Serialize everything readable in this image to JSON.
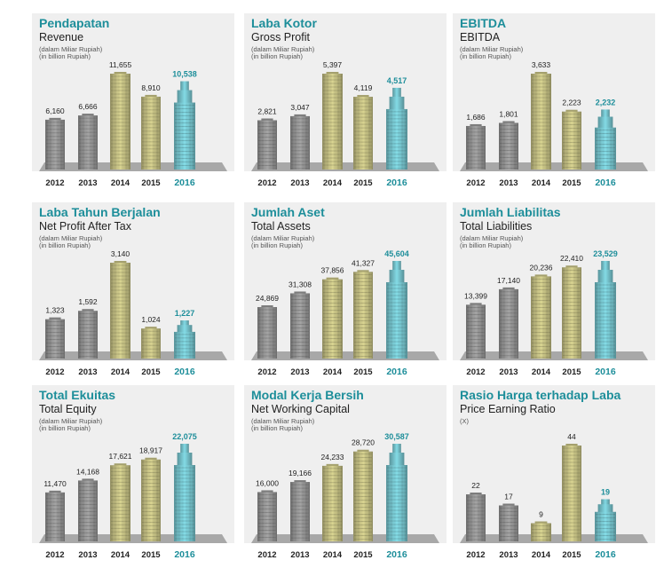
{
  "colors": {
    "accent": "#1d8e9a",
    "panel_bg": "#efefef",
    "floor": "#a8a8a8",
    "gray_building": "#8a8a8a",
    "olive_building": "#b6b27a",
    "teal_building": "#6fb9c2"
  },
  "chart_data": [
    {
      "type": "bar",
      "title": "Pendapatan",
      "subtitle": "Revenue",
      "unit_id": "(dalam Miliar Rupiah)",
      "unit_en": "(in billion Rupiah)",
      "categories": [
        "2012",
        "2013",
        "2014",
        "2015",
        "2016"
      ],
      "values": [
        6160,
        6666,
        11655,
        8910,
        10538
      ],
      "labels": [
        "6,160",
        "6,666",
        "11,655",
        "8,910",
        "10,538"
      ],
      "highlight": "2016"
    },
    {
      "type": "bar",
      "title": "Laba Kotor",
      "subtitle": "Gross Profit",
      "unit_id": "(dalam Miliar Rupiah)",
      "unit_en": "(in billion Rupiah)",
      "categories": [
        "2012",
        "2013",
        "2014",
        "2015",
        "2016"
      ],
      "values": [
        2821,
        3047,
        5397,
        4119,
        4517
      ],
      "labels": [
        "2,821",
        "3,047",
        "5,397",
        "4,119",
        "4,517"
      ],
      "highlight": "2016"
    },
    {
      "type": "bar",
      "title": "EBITDA",
      "subtitle": "EBITDA",
      "unit_id": "(dalam Miliar Rupiah)",
      "unit_en": "(in billion Rupiah)",
      "categories": [
        "2012",
        "2013",
        "2014",
        "2015",
        "2016"
      ],
      "values": [
        1686,
        1801,
        3633,
        2223,
        2232
      ],
      "labels": [
        "1,686",
        "1,801",
        "3,633",
        "2,223",
        "2,232"
      ],
      "highlight": "2016"
    },
    {
      "type": "bar",
      "title": "Laba Tahun Berjalan",
      "subtitle": "Net Profit After Tax",
      "unit_id": "(dalam Miliar Rupiah)",
      "unit_en": "(in billion Rupiah)",
      "categories": [
        "2012",
        "2013",
        "2014",
        "2015",
        "2016"
      ],
      "values": [
        1323,
        1592,
        3140,
        1024,
        1227
      ],
      "labels": [
        "1,323",
        "1,592",
        "3,140",
        "1,024",
        "1,227"
      ],
      "highlight": "2016"
    },
    {
      "type": "bar",
      "title": "Jumlah Aset",
      "subtitle": "Total Assets",
      "unit_id": "(dalam Miliar Rupiah)",
      "unit_en": "(in billion Rupiah)",
      "categories": [
        "2012",
        "2013",
        "2014",
        "2015",
        "2016"
      ],
      "values": [
        24869,
        31308,
        37856,
        41327,
        45604
      ],
      "labels": [
        "24,869",
        "31,308",
        "37,856",
        "41,327",
        "45,604"
      ],
      "highlight": "2016"
    },
    {
      "type": "bar",
      "title": "Jumlah Liabilitas",
      "subtitle": "Total Liabilities",
      "unit_id": "(dalam Miliar Rupiah)",
      "unit_en": "(in billion Rupiah)",
      "categories": [
        "2012",
        "2013",
        "2014",
        "2015",
        "2016"
      ],
      "values": [
        13399,
        17140,
        20236,
        22410,
        23529
      ],
      "labels": [
        "13,399",
        "17,140",
        "20,236",
        "22,410",
        "23,529"
      ],
      "highlight": "2016"
    },
    {
      "type": "bar",
      "title": "Total Ekuitas",
      "subtitle": "Total Equity",
      "unit_id": "(dalam Miliar Rupiah)",
      "unit_en": "(in billion Rupiah)",
      "categories": [
        "2012",
        "2013",
        "2014",
        "2015",
        "2016"
      ],
      "values": [
        11470,
        14168,
        17621,
        18917,
        22075
      ],
      "labels": [
        "11,470",
        "14,168",
        "17,621",
        "18,917",
        "22,075"
      ],
      "highlight": "2016"
    },
    {
      "type": "bar",
      "title": "Modal Kerja Bersih",
      "subtitle": "Net Working Capital",
      "unit_id": "(dalam Miliar Rupiah)",
      "unit_en": "(in billion Rupiah)",
      "categories": [
        "2012",
        "2013",
        "2014",
        "2015",
        "2016"
      ],
      "values": [
        16000,
        19166,
        24233,
        28720,
        30587
      ],
      "labels": [
        "16,000",
        "19,166",
        "24,233",
        "28,720",
        "30,587"
      ],
      "highlight": "2016"
    },
    {
      "type": "bar",
      "title": "Rasio Harga terhadap Laba",
      "subtitle": "Price Earning Ratio",
      "unit_id": "(X)",
      "unit_en": "",
      "categories": [
        "2012",
        "2013",
        "2014",
        "2015",
        "2016"
      ],
      "values": [
        22,
        17,
        9,
        44,
        19
      ],
      "labels": [
        "22",
        "17",
        "9",
        "44",
        "19"
      ],
      "highlight": "2016"
    }
  ]
}
